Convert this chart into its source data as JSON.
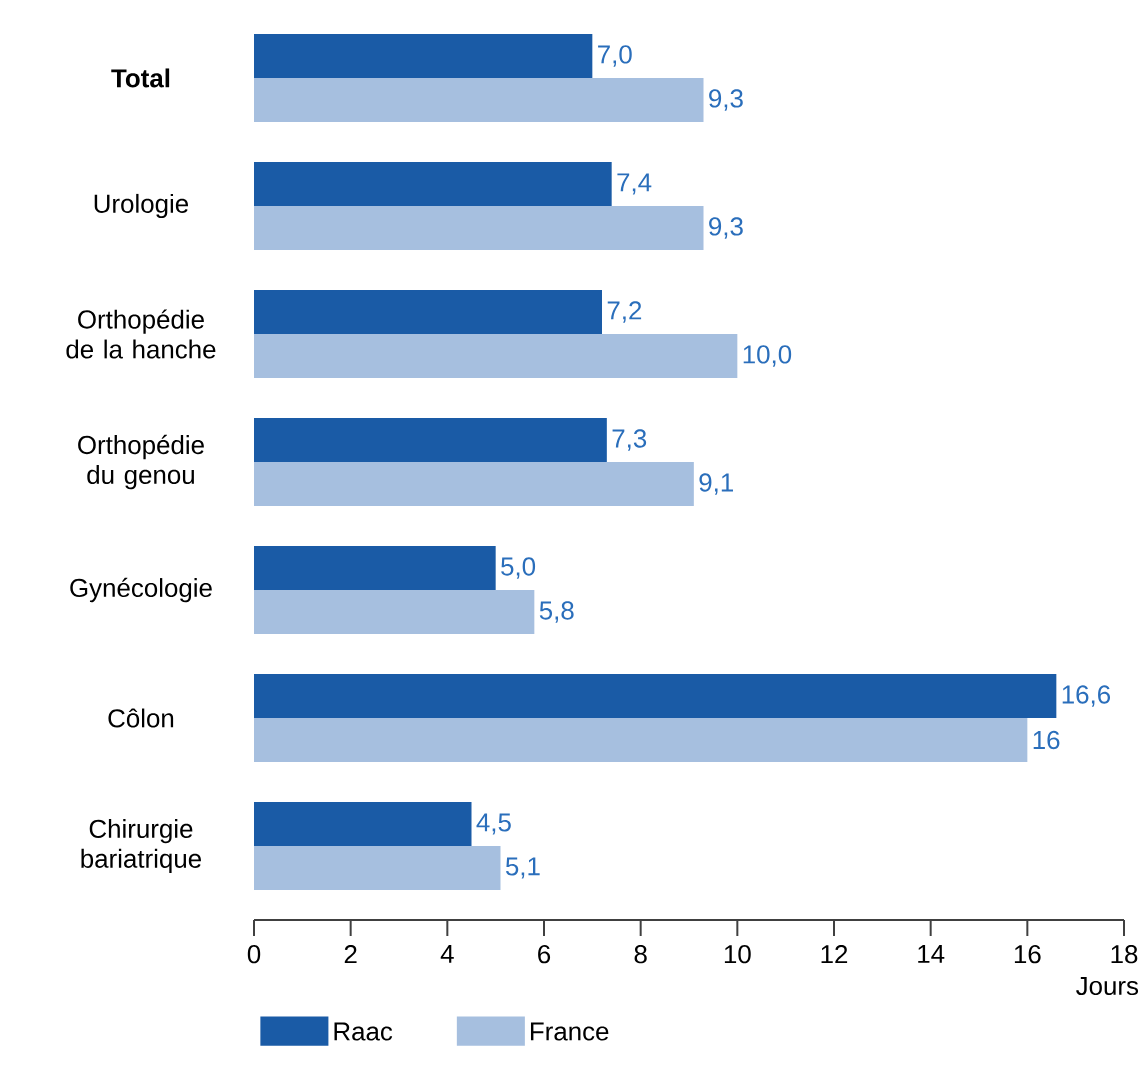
{
  "chart_data": {
    "type": "bar",
    "orientation": "horizontal",
    "xlabel": "Jours",
    "categories": [
      "**Total**",
      "Urologie",
      "Orthopédie de la hanche",
      "Orthopédie du genou",
      "Gynécologie",
      "Côlon",
      "Chirurgie bariatrique"
    ],
    "series": [
      {
        "name": "Raac",
        "color": "#1a5ba6",
        "values": [
          7.0,
          7.4,
          7.2,
          7.3,
          5.0,
          16.6,
          4.5
        ],
        "value_labels": [
          "7,0",
          "7,4",
          "7,2",
          "7,3",
          "5,0",
          "16,6",
          "4,5"
        ]
      },
      {
        "name": "France",
        "color": "#a6bfdf",
        "values": [
          9.3,
          9.3,
          10.0,
          9.1,
          5.8,
          16,
          5.1
        ],
        "value_labels": [
          "9,3",
          "9,3",
          "10,0",
          "9,1",
          "5,8",
          "16",
          "5,1"
        ]
      }
    ],
    "xlim": [
      0,
      18
    ],
    "xticks": [
      0,
      2,
      4,
      6,
      8,
      10,
      12,
      14,
      16,
      18
    ],
    "grid": false,
    "legend": "bottom left"
  }
}
